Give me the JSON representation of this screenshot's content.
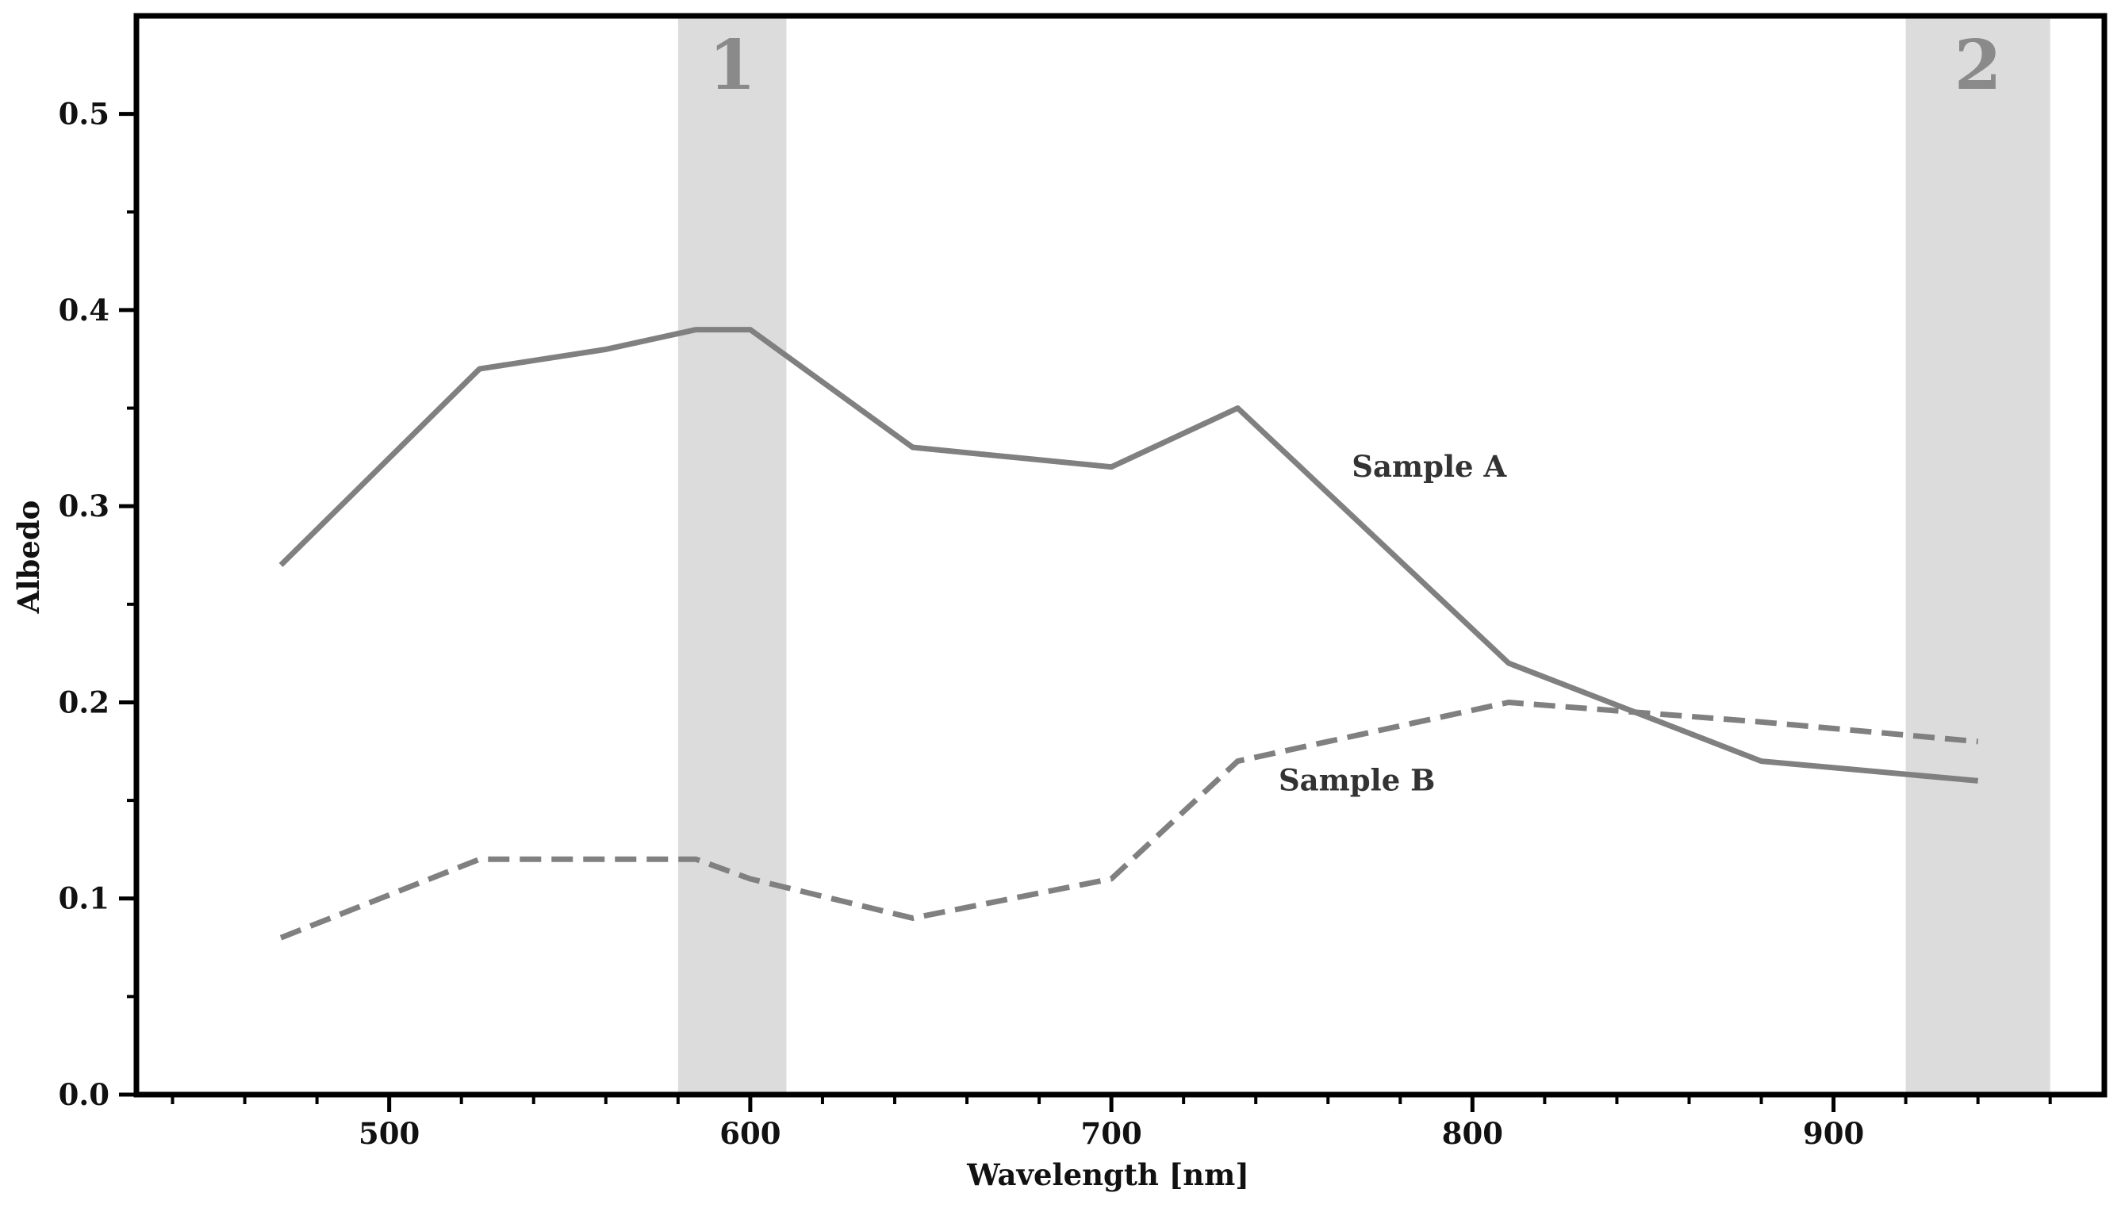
{
  "chart_data": {
    "type": "line",
    "title": "",
    "xlabel": "Wavelength [nm]",
    "ylabel": "Albedo",
    "xlim": [
      430,
      975
    ],
    "ylim": [
      0.0,
      0.55
    ],
    "x_ticks": [
      500,
      600,
      700,
      800,
      900
    ],
    "x_tick_labels": [
      "500",
      "600",
      "700",
      "800",
      "900"
    ],
    "y_ticks": [
      0.0,
      0.1,
      0.2,
      0.3,
      0.4,
      0.5
    ],
    "y_tick_labels": [
      "0.0",
      "0.1",
      "0.2",
      "0.3",
      "0.4",
      "0.5"
    ],
    "grid": false,
    "bands": [
      {
        "label": "1",
        "x_range": [
          580,
          610
        ],
        "color": "#dcdcdc"
      },
      {
        "label": "2",
        "x_range": [
          920,
          960
        ],
        "color": "#dcdcdc"
      }
    ],
    "series": [
      {
        "name": "Sample A",
        "style": "solid",
        "color": "#808080",
        "x": [
          470,
          525,
          560,
          585,
          600,
          645,
          700,
          735,
          810,
          880,
          940
        ],
        "y": [
          0.27,
          0.37,
          0.38,
          0.39,
          0.39,
          0.33,
          0.32,
          0.35,
          0.22,
          0.17,
          0.16
        ],
        "label_pos": [
          788,
          0.315
        ]
      },
      {
        "name": "Sample B",
        "style": "dashed",
        "color": "#808080",
        "x": [
          470,
          525,
          585,
          600,
          645,
          700,
          735,
          810,
          880,
          940
        ],
        "y": [
          0.08,
          0.12,
          0.12,
          0.11,
          0.09,
          0.11,
          0.17,
          0.2,
          0.19,
          0.18
        ],
        "label_pos": [
          768,
          0.155
        ]
      }
    ]
  }
}
